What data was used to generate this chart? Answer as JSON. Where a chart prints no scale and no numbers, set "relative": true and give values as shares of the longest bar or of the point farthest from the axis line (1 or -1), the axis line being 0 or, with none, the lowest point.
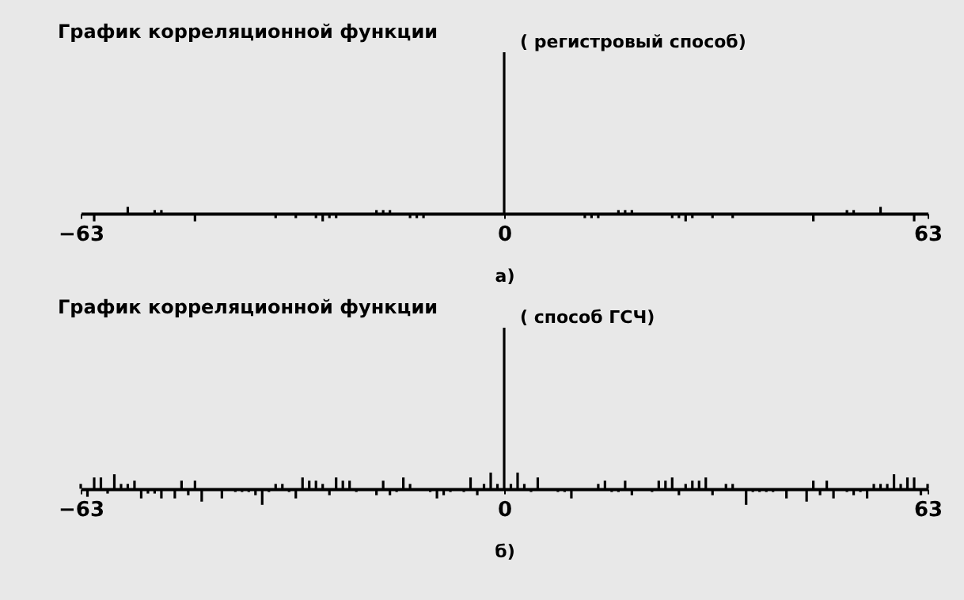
{
  "chart_data": [
    {
      "type": "bar",
      "title": "График корреляционной функции",
      "subtitle": "( регистровый способ)",
      "annotations": [
        "а)"
      ],
      "relative": true,
      "color": "#000000",
      "xlim": [
        -63,
        63
      ],
      "xticks": [
        -63,
        0,
        63
      ],
      "x": [
        -61,
        -56,
        -52,
        -51,
        -46,
        -34,
        -31,
        -28,
        -27,
        -26,
        -25,
        -19,
        -18,
        -17,
        -14,
        -13,
        -12,
        0,
        12,
        13,
        14,
        17,
        18,
        19,
        25,
        26,
        27,
        28,
        31,
        34,
        46,
        51,
        52,
        56,
        61
      ],
      "values": [
        -0.05,
        0.04,
        0.02,
        0.02,
        -0.05,
        -0.03,
        -0.03,
        -0.03,
        -0.05,
        -0.03,
        -0.03,
        0.02,
        0.02,
        0.02,
        -0.03,
        -0.03,
        -0.03,
        1,
        -0.03,
        -0.03,
        -0.03,
        0.02,
        0.02,
        0.02,
        -0.03,
        -0.03,
        -0.05,
        -0.03,
        -0.03,
        -0.03,
        -0.05,
        0.02,
        0.02,
        0.04,
        -0.05
      ]
    },
    {
      "type": "bar",
      "title": "График корреляционной функции",
      "subtitle": "( способ ГСЧ)",
      "annotations": [
        "б)"
      ],
      "relative": true,
      "color": "#000000",
      "xlim": [
        -63,
        63
      ],
      "xticks": [
        -63,
        0,
        63
      ],
      "x": [
        -63,
        -62,
        -61,
        -60,
        -59,
        -58,
        -57,
        -56,
        -55,
        -54,
        -53,
        -52,
        -51,
        -49,
        -48,
        -47,
        -46,
        -45,
        -42,
        -40,
        -39,
        -38,
        -37,
        -36,
        -35,
        -34,
        -33,
        -32,
        -31,
        -30,
        -29,
        -28,
        -27,
        -26,
        -25,
        -24,
        -23,
        -22,
        -19,
        -18,
        -17,
        -16,
        -15,
        -14,
        -11,
        -10,
        -9,
        -8,
        -6,
        -5,
        -4,
        -3,
        -2,
        -1,
        0,
        1,
        2,
        3,
        4,
        5,
        8,
        9,
        10,
        14,
        15,
        16,
        17,
        18,
        19,
        22,
        23,
        24,
        25,
        26,
        27,
        28,
        29,
        30,
        31,
        33,
        34,
        36,
        37,
        38,
        39,
        40,
        42,
        45,
        46,
        47,
        48,
        49,
        51,
        52,
        53,
        54,
        55,
        56,
        57,
        58,
        59,
        60,
        61,
        62,
        63
      ],
      "values": [
        0.03,
        -0.05,
        0.07,
        0.07,
        -0.03,
        0.09,
        0.03,
        0.03,
        0.05,
        -0.06,
        -0.03,
        -0.03,
        -0.06,
        -0.06,
        0.05,
        -0.04,
        0.05,
        -0.08,
        -0.06,
        -0.02,
        -0.02,
        -0.02,
        -0.04,
        -0.1,
        -0.02,
        0.03,
        0.03,
        -0.02,
        -0.06,
        0.07,
        0.05,
        0.05,
        0.03,
        -0.04,
        0.07,
        0.05,
        0.05,
        -0.02,
        -0.04,
        0.05,
        -0.04,
        -0.02,
        0.07,
        0.03,
        -0.02,
        -0.06,
        -0.04,
        -0.02,
        -0.02,
        0.07,
        -0.04,
        0.03,
        0.1,
        0.03,
        1,
        0.03,
        0.1,
        0.03,
        -0.02,
        0.07,
        -0.02,
        -0.02,
        -0.06,
        0.03,
        0.05,
        -0.02,
        -0.02,
        0.05,
        -0.04,
        -0.02,
        0.05,
        0.05,
        0.07,
        -0.04,
        0.03,
        0.05,
        0.05,
        0.07,
        -0.04,
        0.03,
        0.03,
        -0.1,
        -0.02,
        -0.02,
        -0.02,
        -0.02,
        -0.06,
        -0.08,
        0.05,
        -0.04,
        0.05,
        -0.06,
        -0.02,
        -0.04,
        -0.02,
        -0.06,
        0.03,
        0.03,
        0.03,
        0.09,
        0.03,
        0.07,
        0.07,
        -0.04,
        0.03
      ]
    }
  ]
}
